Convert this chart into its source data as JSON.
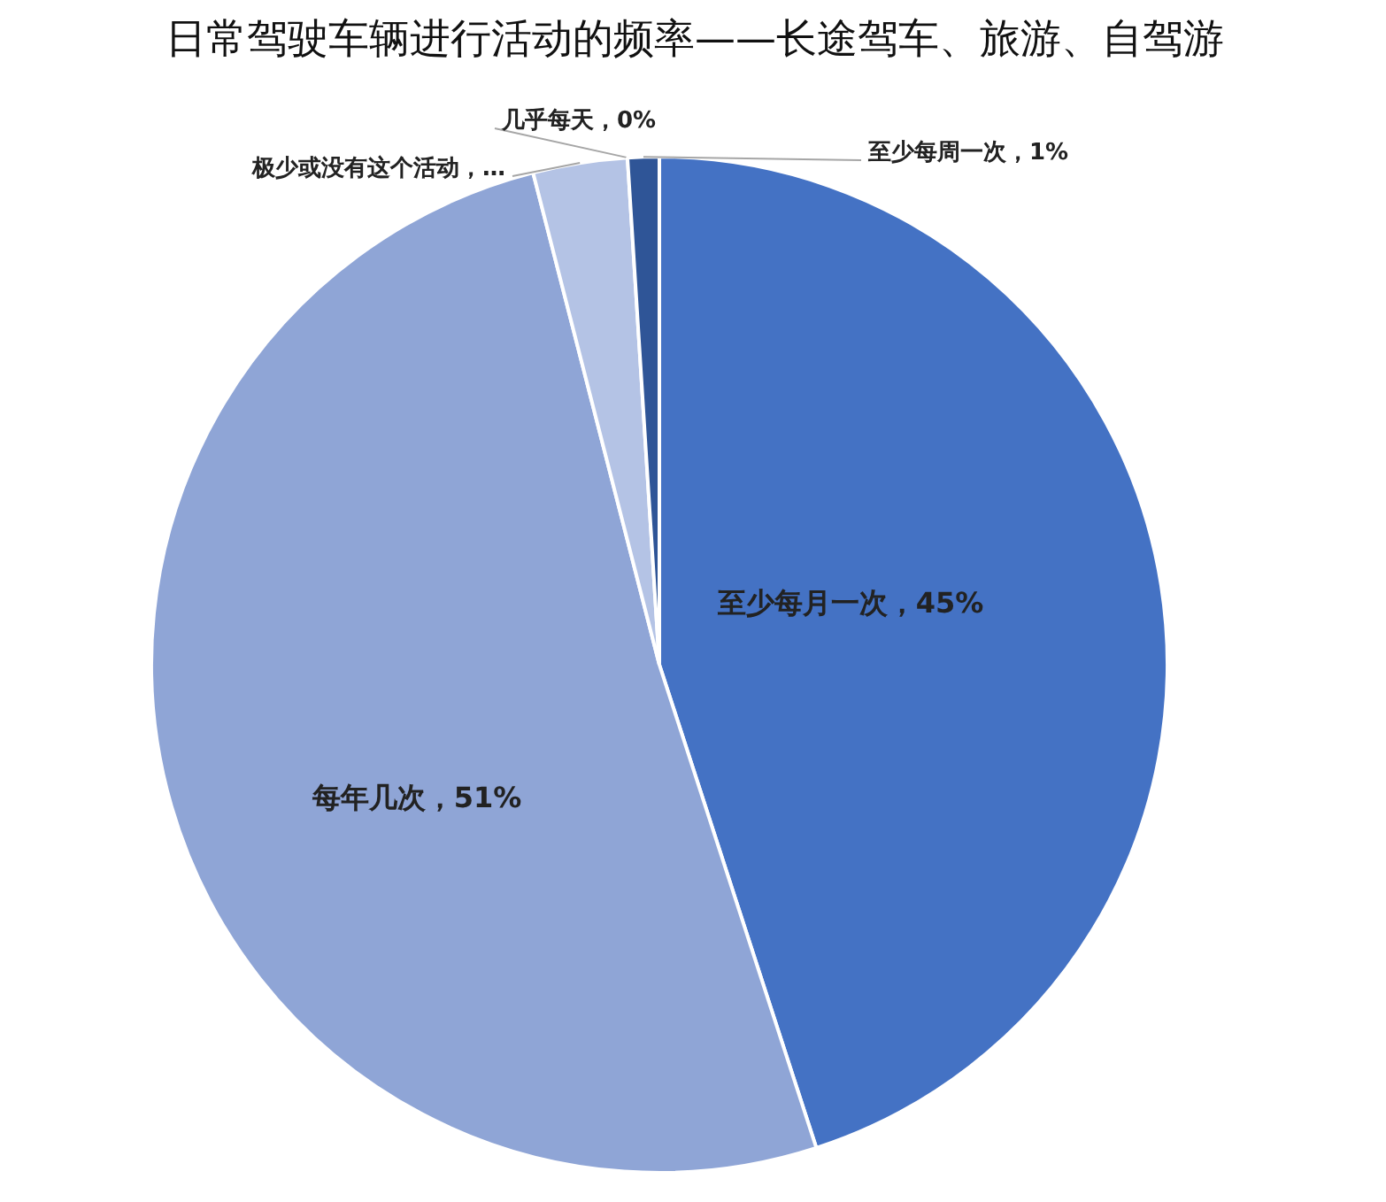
{
  "chart_data": {
    "type": "pie",
    "title": "日常驾驶车辆进行活动的频率——长途驾车、旅游、自驾游",
    "categories": [
      "至少每月一次",
      "每年几次",
      "极少或没有这个活动",
      "几乎每天",
      "至少每周一次"
    ],
    "values": [
      45,
      51,
      3,
      0,
      1
    ],
    "colors": [
      "#4472c4",
      "#8fa5d6",
      "#b4c3e5",
      "#2f5597",
      "#2f5597"
    ],
    "value_labels": [
      "，45%",
      "，51%",
      "，…",
      "，0%",
      "，1%"
    ]
  }
}
